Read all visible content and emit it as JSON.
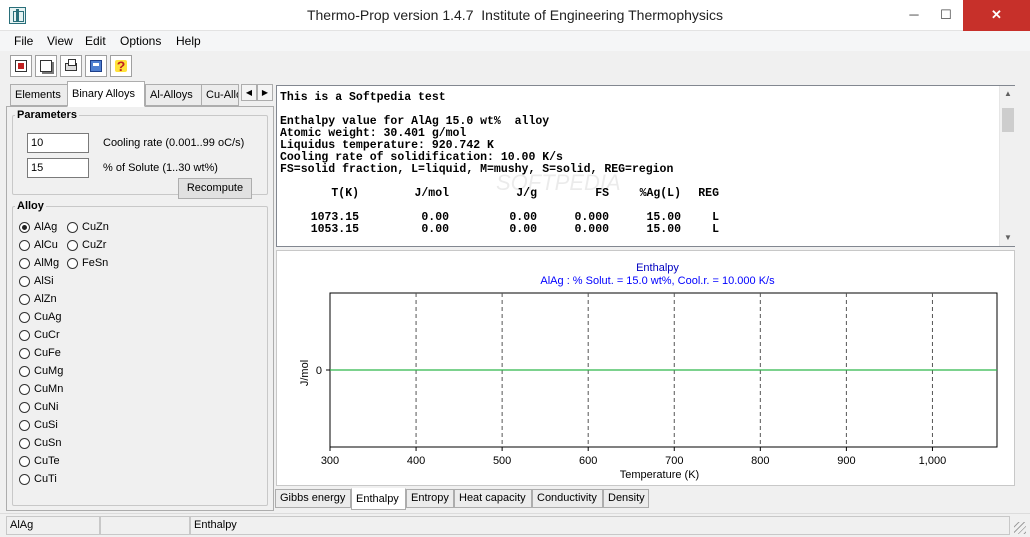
{
  "window": {
    "title": "Thermo-Prop version 1.4.7  Institute of Engineering Thermophysics",
    "minimize": "─",
    "maximize": "☐",
    "close": "✕"
  },
  "menu": [
    "File",
    "View",
    "Edit",
    "Options",
    "Help"
  ],
  "toolbar": {
    "icons": [
      "open-icon",
      "copy-icon",
      "print-icon",
      "calculator-icon",
      "help-icon"
    ],
    "help_glyph": "?"
  },
  "left_tabs": {
    "items": [
      "Elements",
      "Binary Alloys",
      "Al-Alloys",
      "Cu-Allo"
    ],
    "active": "Binary Alloys",
    "scroll_left": "◀",
    "scroll_right": "▶"
  },
  "parameters": {
    "legend": "Parameters",
    "cooling_rate": {
      "value": "10",
      "label": "Cooling rate (0.001..99 oC/s)"
    },
    "solute": {
      "value": "15",
      "label": "% of Solute (1..30 wt%)"
    },
    "recompute": "Recompute"
  },
  "alloy": {
    "legend": "Alloy",
    "selected": "AlAg",
    "col1": [
      "AlAg",
      "AlCu",
      "AlMg",
      "AlSi",
      "AlZn",
      "CuAg",
      "CuCr",
      "CuFe",
      "CuMg",
      "CuMn",
      "CuNi",
      "CuSi",
      "CuSn",
      "CuTe",
      "CuTi"
    ],
    "col2": [
      "CuZn",
      "CuZr",
      "FeSn"
    ]
  },
  "output": {
    "lines": [
      "This is a Softpedia test",
      "",
      "Enthalpy value for AlAg 15.0 wt%  alloy",
      "Atomic weight: 30.401 g/mol",
      "Liquidus temperature: 920.742 K",
      "Cooling rate of solidification: 10.00 K/s",
      "FS=solid fraction, L=liquid, M=mushy, S=solid, REG=region"
    ],
    "table_header": [
      "T(K)",
      "J/mol",
      "J/g",
      "FS",
      "%Ag(L)",
      "REG"
    ],
    "table_rows": [
      [
        "1073.15",
        "0.00",
        "0.00",
        "0.000",
        "15.00",
        "L"
      ],
      [
        "1053.15",
        "0.00",
        "0.00",
        "0.000",
        "15.00",
        "L"
      ]
    ],
    "watermark": "SOFTPEDIA"
  },
  "chart_data": {
    "type": "line",
    "title": "Enthalpy",
    "subtitle": "AlAg : % Solut. = 15.0  wt%, Cool.r. = 10.000 K/s",
    "xlabel": "Temperature (K)",
    "ylabel": "J/mol",
    "xlim": [
      300,
      1075
    ],
    "xticks": [
      300,
      400,
      500,
      600,
      700,
      800,
      900,
      1000
    ],
    "xtick_labels": [
      "300",
      "400",
      "500",
      "600",
      "700",
      "800",
      "900",
      "1,000"
    ],
    "ylim": [
      -1,
      1
    ],
    "yticks": [
      0
    ],
    "ytick_labels": [
      "0"
    ],
    "grid": "vertical dashed",
    "series": [
      {
        "x": [
          300,
          1075
        ],
        "y": [
          0,
          0
        ],
        "color": "#2db84a"
      }
    ],
    "title_color": "#0000c0",
    "subtitle_color": "#0000ff"
  },
  "bottom_tabs": {
    "items": [
      "Gibbs energy",
      "Enthalpy",
      "Entropy",
      "Heat capacity",
      "Conductivity",
      "Density"
    ],
    "active": "Enthalpy"
  },
  "status": [
    "AlAg",
    "",
    "Enthalpy"
  ]
}
